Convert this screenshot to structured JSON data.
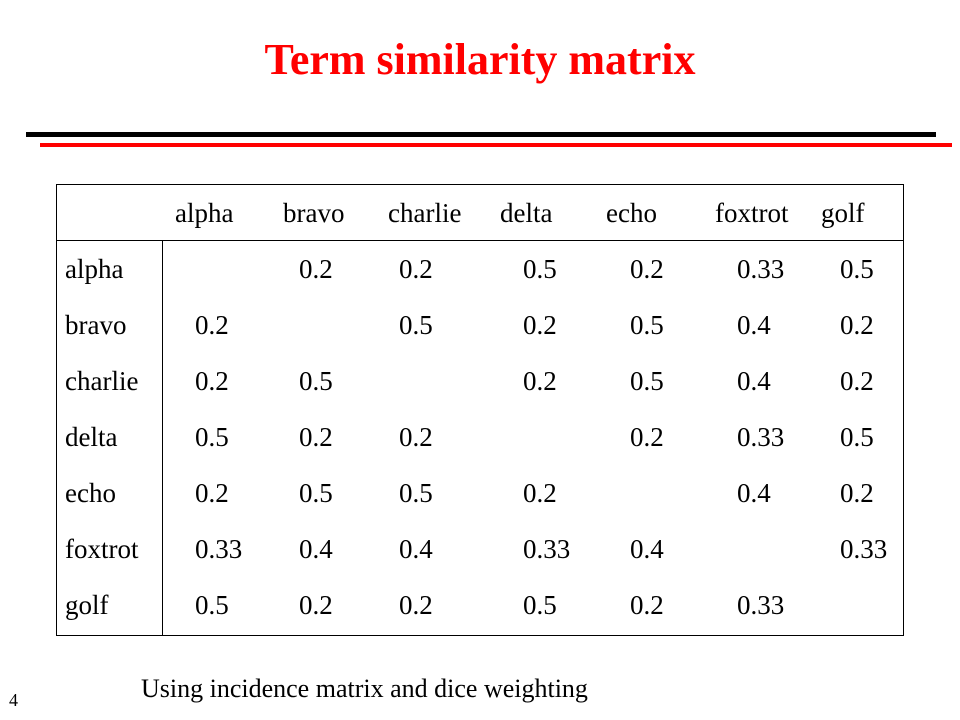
{
  "title": "Term similarity matrix",
  "matrix": {
    "columns": [
      "alpha",
      "bravo",
      "charlie",
      "delta",
      "echo",
      "foxtrot",
      "golf"
    ],
    "rows": [
      {
        "label": "alpha",
        "values": [
          "",
          "0.2",
          "0.2",
          "0.5",
          "0.2",
          "0.33",
          "0.5"
        ]
      },
      {
        "label": "bravo",
        "values": [
          "0.2",
          "",
          "0.5",
          "0.2",
          "0.5",
          "0.4",
          "0.2"
        ]
      },
      {
        "label": "charlie",
        "values": [
          "0.2",
          "0.5",
          "",
          "0.2",
          "0.5",
          "0.4",
          "0.2"
        ]
      },
      {
        "label": "delta",
        "values": [
          "0.5",
          "0.2",
          "0.2",
          "",
          "0.2",
          "0.33",
          "0.5"
        ]
      },
      {
        "label": "echo",
        "values": [
          "0.2",
          "0.5",
          "0.5",
          "0.2",
          "",
          "0.4",
          "0.2"
        ]
      },
      {
        "label": "foxtrot",
        "values": [
          "0.33",
          "0.4",
          "0.4",
          "0.33",
          "0.4",
          "",
          "0.33"
        ]
      },
      {
        "label": "golf",
        "values": [
          "0.5",
          "0.2",
          "0.2",
          "0.5",
          "0.2",
          "0.33",
          ""
        ]
      }
    ]
  },
  "footer": "Using incidence matrix and dice weighting",
  "page_number": "4",
  "colors": {
    "title": "#ff0000",
    "rule_black": "#000000",
    "rule_red": "#ff0000"
  }
}
